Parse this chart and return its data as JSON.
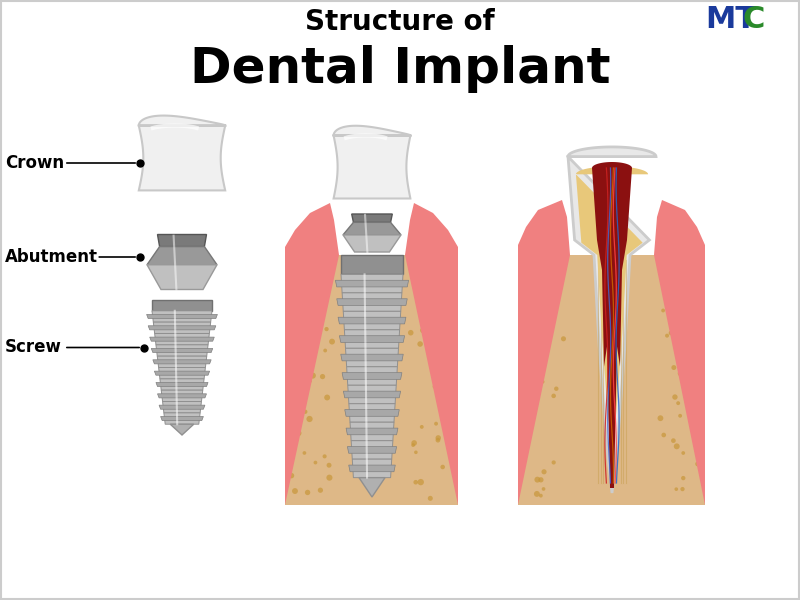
{
  "title_line1": "Structure of",
  "title_line2": "Dental Implant",
  "title_line1_fontsize": 20,
  "title_line2_fontsize": 36,
  "title_fontweight": "bold",
  "bg_color": "#ffffff",
  "mtc_color": "#1a3a9c",
  "mtc_C_color": "#2a8a2a",
  "labels": [
    "Crown",
    "Abutment",
    "Screw"
  ],
  "label_fontsize": 12,
  "label_fontweight": "bold",
  "crown_fc": "#f0f0f0",
  "crown_ec": "#c8c8c8",
  "abutment_fc_top": "#888888",
  "abutment_fc_mid": "#aaaaaa",
  "abutment_fc_bot": "#c8c8c8",
  "screw_fc": "#b8b8b8",
  "screw_ec": "#888888",
  "gum_color": "#f08080",
  "gum_color2": "#f4a0a0",
  "bone_color": "#deb887",
  "bone_dot_color": "#c8973a"
}
